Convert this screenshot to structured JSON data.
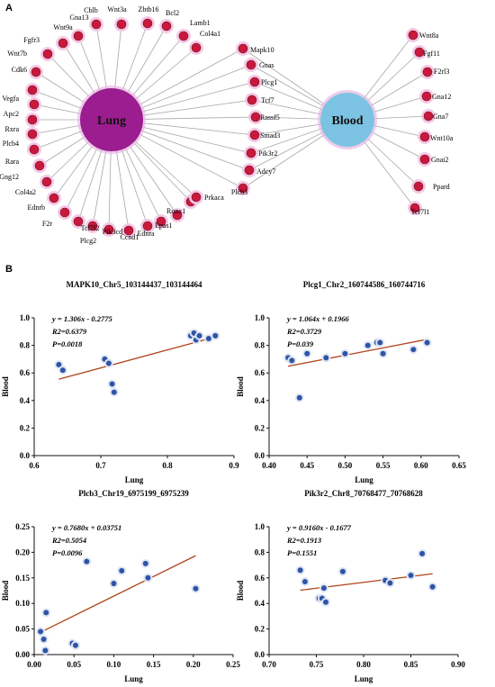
{
  "panel_a": {
    "letter": "A",
    "hubs": [
      {
        "name": "Lung",
        "color": "#9b1d8f"
      },
      {
        "name": "Blood",
        "color": "#7cc3e3"
      }
    ],
    "lung_genes": [
      "Cblb",
      "Wnt3a",
      "Zbtb16",
      "Bcl2",
      "Lamb1",
      "Col4a1",
      "Gna13",
      "Wnt9a",
      "Fgfr3",
      "Wnt7b",
      "Cdk6",
      "Vegfa",
      "Apc2",
      "Rxra",
      "Plcb4",
      "Rara",
      "Gng12",
      "Col4a2",
      "Ednrb",
      "F2r",
      "Plcg2",
      "Tcf7l2",
      "Pik3cd",
      "Ccnd1",
      "Ednra",
      "Epas1",
      "Runx1",
      "Prkaca"
    ],
    "shared_genes": [
      "Mapk10",
      "Gnas",
      "Plcg1",
      "Tcf7",
      "Rassf5",
      "Smad3",
      "Pik3r2",
      "Adcy7",
      "Plcb3"
    ],
    "blood_genes": [
      "Wnt8a",
      "Fgf11",
      "F2rl3",
      "Gna12",
      "Gna7",
      "Wnt10a",
      "Gnai2",
      "Ppard",
      "Tcf7l1"
    ],
    "node_color": "#c8193c",
    "node_halo": "#f3c9e6"
  },
  "panel_b": {
    "letter": "B"
  },
  "chart_data": [
    {
      "type": "scatter",
      "title": "MAPK10_Chr5_103144437_103144464",
      "equation": "y = 1.306x - 0.2775",
      "r2": "R2=0.6379",
      "p": "P=0.0018",
      "xlabel": "Lung",
      "ylabel": "Blood",
      "xlim": [
        0.6,
        0.9
      ],
      "ylim": [
        0.0,
        1.0
      ],
      "xticks": [
        "0.6",
        "0.7",
        "0.8",
        "0.9"
      ],
      "yticks": [
        "0.0",
        "0.2",
        "0.4",
        "0.6",
        "0.8",
        "1.0"
      ],
      "x": [
        0.637,
        0.643,
        0.706,
        0.712,
        0.717,
        0.72,
        0.835,
        0.84,
        0.843,
        0.848,
        0.862,
        0.872
      ],
      "y": [
        0.66,
        0.62,
        0.7,
        0.67,
        0.52,
        0.46,
        0.87,
        0.89,
        0.84,
        0.87,
        0.85,
        0.87
      ],
      "fit": {
        "slope": 1.306,
        "intercept": -0.2775
      }
    },
    {
      "type": "scatter",
      "title": "Plcg1_Chr2_160744586_160744716",
      "equation": "y = 1.064x + 0.1966",
      "r2": "R2=0.3729",
      "p": "P=0.039",
      "xlabel": "Lung",
      "ylabel": "Blood",
      "xlim": [
        0.4,
        0.65
      ],
      "ylim": [
        0.0,
        1.0
      ],
      "xticks": [
        "0.40",
        "0.45",
        "0.50",
        "0.55",
        "0.60",
        "0.65"
      ],
      "yticks": [
        "0.0",
        "0.2",
        "0.4",
        "0.6",
        "0.8",
        "1.0"
      ],
      "x": [
        0.425,
        0.43,
        0.44,
        0.45,
        0.475,
        0.5,
        0.53,
        0.542,
        0.546,
        0.55,
        0.59,
        0.608
      ],
      "y": [
        0.71,
        0.69,
        0.42,
        0.74,
        0.71,
        0.74,
        0.8,
        0.82,
        0.82,
        0.74,
        0.77,
        0.82
      ],
      "fit": {
        "slope": 1.064,
        "intercept": 0.1966
      }
    },
    {
      "type": "scatter",
      "title": "Plcb3_Chr19_6975199_6975239",
      "equation": "y = 0.7680x + 0.03751",
      "r2": "R2=0.5054",
      "p": "P=0.0096",
      "xlabel": "Lung",
      "ylabel": "Blood",
      "xlim": [
        0.0,
        0.25
      ],
      "ylim": [
        0.0,
        0.25
      ],
      "xticks": [
        "0.00",
        "0.05",
        "0.10",
        "0.15",
        "0.20",
        "0.25"
      ],
      "yticks": [
        "0.00",
        "0.05",
        "0.10",
        "0.15",
        "0.20",
        "0.25"
      ],
      "x": [
        0.008,
        0.012,
        0.014,
        0.015,
        0.048,
        0.052,
        0.066,
        0.1,
        0.11,
        0.14,
        0.143,
        0.203
      ],
      "y": [
        0.045,
        0.03,
        0.008,
        0.082,
        0.022,
        0.018,
        0.182,
        0.139,
        0.164,
        0.178,
        0.15,
        0.129
      ],
      "fit": {
        "slope": 0.768,
        "intercept": 0.03751
      }
    },
    {
      "type": "scatter",
      "title": "Pik3r2_Chr8_70768477_70768628",
      "equation": "y = 0.9160x - 0.1677",
      "r2": "R2=0.1913",
      "p": "P=0.1551",
      "xlabel": "Lung",
      "ylabel": "Blood",
      "xlim": [
        0.7,
        0.9
      ],
      "ylim": [
        0.0,
        1.0
      ],
      "xticks": [
        "0.70",
        "0.75",
        "0.80",
        "0.85",
        "0.90"
      ],
      "yticks": [
        "0.0",
        "0.2",
        "0.4",
        "0.6",
        "0.8",
        "1.0"
      ],
      "x": [
        0.733,
        0.738,
        0.753,
        0.756,
        0.758,
        0.76,
        0.778,
        0.823,
        0.828,
        0.85,
        0.862,
        0.873
      ],
      "y": [
        0.66,
        0.57,
        0.44,
        0.44,
        0.52,
        0.41,
        0.65,
        0.58,
        0.56,
        0.62,
        0.79,
        0.53
      ],
      "fit": {
        "slope": 0.916,
        "intercept": -0.1677
      }
    }
  ]
}
